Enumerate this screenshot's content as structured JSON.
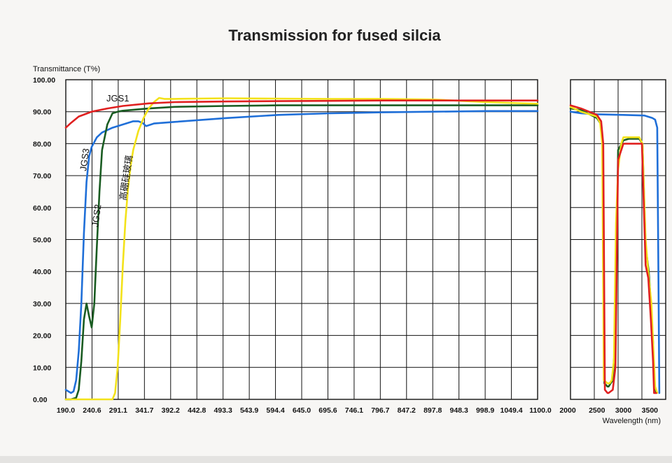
{
  "chart_data": {
    "type": "line",
    "title": "Transmission for fused silcia",
    "ylabel": "Transmittance (T%)",
    "xlabel": "Wavelength (nm)",
    "ylim": [
      0,
      100
    ],
    "grid": true,
    "y_ticks": [
      "0.00",
      "10.00",
      "20.00",
      "30.00",
      "40.00",
      "50.00",
      "60.00",
      "70.00",
      "80.00",
      "90.00",
      "100.00"
    ],
    "panels": [
      {
        "name": "uv-visible",
        "xlim": [
          190.0,
          1100.0
        ],
        "x_ticks": [
          "190.0",
          "240.6",
          "291.1",
          "341.7",
          "392.2",
          "442.8",
          "493.3",
          "543.9",
          "594.4",
          "645.0",
          "695.6",
          "746.1",
          "796.7",
          "847.2",
          "897.8",
          "948.3",
          "998.9",
          "1049.4",
          "1100.0"
        ],
        "series": [
          {
            "name": "JGS1",
            "color": "#e02020",
            "x": [
              190,
              200,
              215,
              240,
              270,
              300,
              350,
              400,
              500,
              600,
              700,
              800,
              900,
              1000,
              1100
            ],
            "y": [
              85,
              86.5,
              88.5,
              90,
              91,
              91.8,
              92.6,
              93,
              93.2,
              93.3,
              93.4,
              93.5,
              93.5,
              93.5,
              93.5
            ]
          },
          {
            "name": "JGS3",
            "color": "#1f6fd8",
            "x": [
              190,
              195,
              200,
              205,
              210,
              215,
              220,
              225,
              230,
              235,
              240,
              250,
              260,
              280,
              300,
              320,
              330,
              338,
              345,
              360,
              400,
              500,
              600,
              700,
              800,
              900,
              1000,
              1100
            ],
            "y": [
              3,
              2.5,
              2,
              2.5,
              6,
              15,
              30,
              52,
              68,
              76,
              79,
              82,
              83.5,
              85,
              86,
              87,
              87,
              86.5,
              85.5,
              86.3,
              86.8,
              88,
              89,
              89.5,
              89.8,
              90,
              90.2,
              90.2
            ],
            "y_breaks": [],
            "x_breaks": []
          },
          {
            "name": "JGS2",
            "color": "#1a5c22",
            "x": [
              190,
              200,
              210,
              215,
              220,
              225,
              230,
              235,
              240,
              245,
              250,
              255,
              260,
              270,
              280,
              290,
              300,
              350,
              400,
              500,
              600,
              700,
              800,
              900,
              1000,
              1100
            ],
            "y": [
              0,
              0,
              0.5,
              3,
              12,
              25,
              30,
              26,
              22.5,
              30,
              48,
              65,
              78,
              86,
              89.5,
              90,
              90.3,
              91,
              91.5,
              91.8,
              92,
              92,
              92,
              92,
              92,
              92
            ]
          },
          {
            "name": "高硼硅玻璃",
            "color": "#f3e21a",
            "x": [
              190,
              280,
              285,
              290,
              295,
              300,
              305,
              310,
              315,
              320,
              330,
              340,
              350,
              360,
              370,
              380,
              400,
              500,
              600,
              700,
              800,
              900,
              1000,
              1100
            ],
            "y": [
              0,
              0,
              2,
              10,
              25,
              42,
              56,
              66,
              73,
              78,
              84,
              88,
              91,
              93,
              94.3,
              94,
              94,
              94.2,
              94.1,
              94,
              94,
              93.8,
              93,
              92.5
            ]
          }
        ]
      },
      {
        "name": "infrared",
        "xlim": [
          2000,
          3800
        ],
        "x_ticks": [
          "2000",
          "2500",
          "3000",
          "3500"
        ],
        "series": [
          {
            "name": "JGS1",
            "color": "#e02020",
            "x": [
              2000,
              2200,
              2500,
              2580,
              2620,
              2650,
              2700,
              2720,
              2760,
              2800,
              2850,
              2900,
              3000,
              3100,
              3200,
              3300,
              3350,
              3420,
              3470,
              3520,
              3560,
              3580,
              3620
            ],
            "y": [
              92,
              91,
              89,
              87,
              80,
              3,
              2,
              2,
              2.5,
              3,
              10,
              75,
              80,
              80,
              80,
              80,
              80,
              42,
              38,
              25,
              12,
              2,
              2
            ]
          },
          {
            "name": "JGS3",
            "color": "#1f6fd8",
            "x": [
              2000,
              2200,
              2500,
              3000,
              3400,
              3550,
              3600,
              3640,
              3660,
              3680
            ],
            "y": [
              90,
              89.5,
              89.2,
              89,
              88.8,
              88,
              87.5,
              85,
              45,
              2
            ]
          },
          {
            "name": "JGS2",
            "color": "#1a5c22",
            "x": [
              2000,
              2200,
              2500,
              2580,
              2610,
              2640,
              2700,
              2720,
              2760,
              2800,
              2850,
              2900,
              3000,
              3100,
              3200,
              3300,
              3360,
              3420,
              3480,
              3520,
              3560,
              3580,
              3620
            ],
            "y": [
              91,
              90.5,
              88,
              86,
              78,
              5,
              4,
              4,
              5,
              6,
              20,
              78,
              81,
              81.5,
              81.5,
              81.5,
              80,
              48,
              40,
              30,
              18,
              5,
              2
            ]
          },
          {
            "name": "高硼硅玻璃",
            "color": "#f3e21a",
            "x": [
              2000,
              2200,
              2500,
              2560,
              2600,
              2630,
              2700,
              2740,
              2780,
              2820,
              2860,
              2900,
              2960,
              3000,
              3100,
              3200,
              3300,
              3360,
              3420,
              3480,
              3530,
              3570,
              3600,
              3640
            ],
            "y": [
              91.5,
              90,
              88.5,
              86.5,
              80,
              6,
              5,
              5,
              6,
              12,
              55,
              72,
              80,
              82,
              82,
              82,
              82,
              80,
              50,
              38,
              30,
              15,
              4,
              2
            ]
          }
        ]
      }
    ],
    "annotations": [
      "JGS1",
      "JGS3",
      "JGS2",
      "高硼硅玻璃"
    ]
  }
}
